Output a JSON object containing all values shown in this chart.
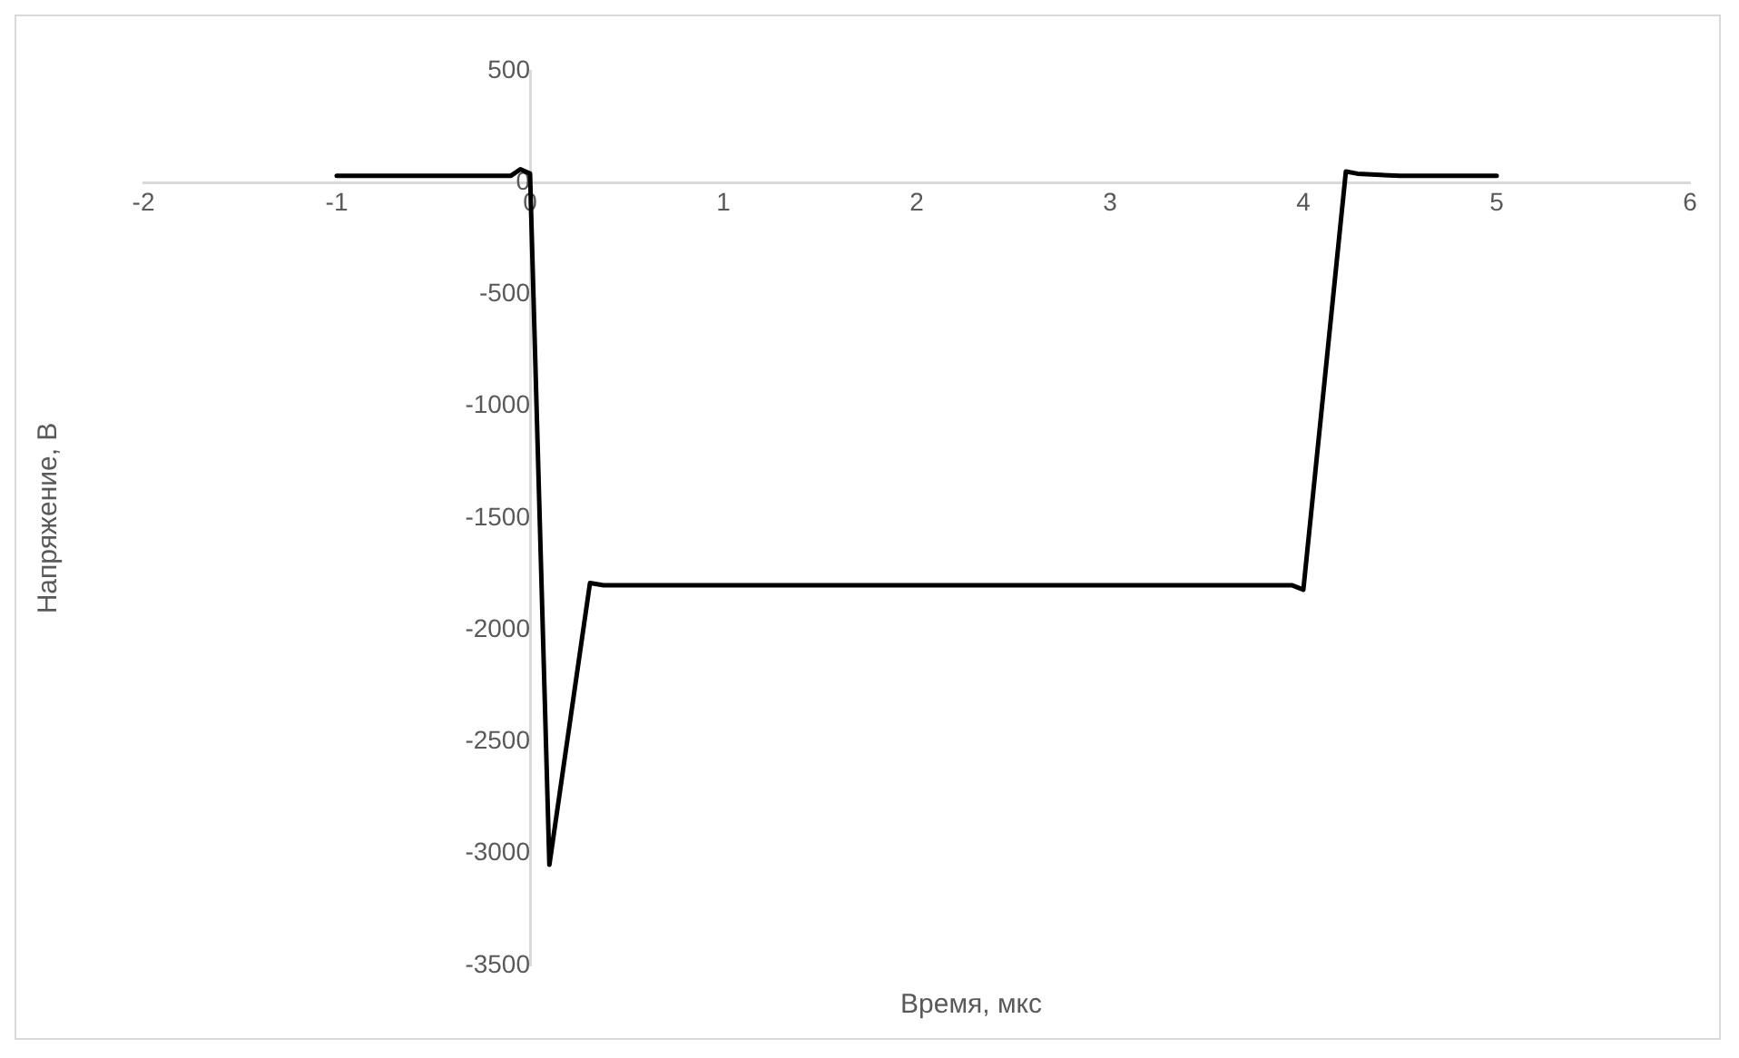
{
  "chart_data": {
    "type": "line",
    "xlabel": "Время, мкс",
    "ylabel": "Напряжение, В",
    "series": [
      {
        "color": "#000000",
        "x": [
          -1,
          -0.5,
          -0.1,
          -0.05,
          0,
          0.1,
          0.31,
          0.38,
          1,
          2,
          3,
          3.94,
          4,
          4.22,
          4.28,
          4.5,
          5
        ],
        "values": [
          30,
          30,
          30,
          60,
          40,
          -3050,
          -1790,
          -1800,
          -1800,
          -1800,
          -1800,
          -1800,
          -1820,
          50,
          40,
          30,
          30
        ]
      }
    ],
    "xlim": [
      -2,
      6
    ],
    "xticks": [
      -2,
      -1,
      0,
      1,
      2,
      3,
      4,
      5,
      6
    ],
    "ylim": [
      -3500,
      500
    ],
    "yticks": [
      -3500,
      -3000,
      -2500,
      -2000,
      -1500,
      -1000,
      -500,
      0,
      500
    ],
    "grid": false,
    "legend": false,
    "marker": "none",
    "line_style": "solid"
  }
}
